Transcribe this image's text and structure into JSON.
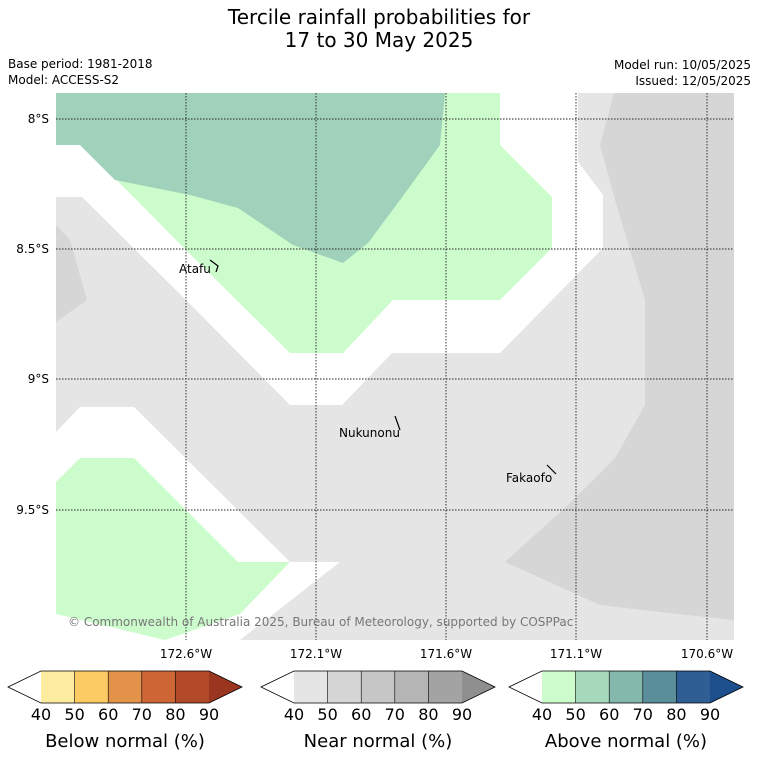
{
  "header": {
    "title_line1": "Tercile rainfall probabilities for",
    "title_line2": "17 to 30 May 2025",
    "base_period": "Base period: 1981-2018",
    "model": "Model: ACCESS-S2",
    "model_run": "Model run: 10/05/2025",
    "issued": "Issued: 12/05/2025"
  },
  "map": {
    "lat_labels": [
      "8°S",
      "8.5°S",
      "9°S",
      "9.5°S"
    ],
    "lon_labels": [
      "172.6°W",
      "172.1°W",
      "171.6°W",
      "171.1°W",
      "170.6°W"
    ],
    "places": [
      "Atafu",
      "Nukunonu",
      "Fakaofo"
    ],
    "copyright": "© Commonwealth of Australia 2025, Bureau of Meteorology, supported by COSPPac"
  },
  "legends": [
    {
      "title": "Below normal (%)",
      "ticks": [
        "40",
        "50",
        "60",
        "70",
        "80",
        "90"
      ],
      "colors": [
        "#ffffff",
        "#fdeba0",
        "#fdcb63",
        "#e3924a",
        "#ce6535",
        "#b24a2a",
        "#9a3520"
      ]
    },
    {
      "title": "Near normal (%)",
      "ticks": [
        "40",
        "50",
        "60",
        "70",
        "80",
        "90"
      ],
      "colors": [
        "#ffffff",
        "#e5e5e5",
        "#d6d6d6",
        "#c6c6c6",
        "#b5b5b5",
        "#a3a3a3",
        "#8f8f8f"
      ]
    },
    {
      "title": "Above normal (%)",
      "ticks": [
        "40",
        "50",
        "60",
        "70",
        "80",
        "90"
      ],
      "colors": [
        "#ffffff",
        "#ccfccc",
        "#a6d8bc",
        "#84b8ac",
        "#5b8e9b",
        "#2e5e93",
        "#1d4f8c"
      ]
    }
  ],
  "region_colors": {
    "above_40": "#ccfccc",
    "above_50": "#9fd1bb",
    "near_40": "#e5e5e5",
    "near_50": "#d6d6d6"
  }
}
